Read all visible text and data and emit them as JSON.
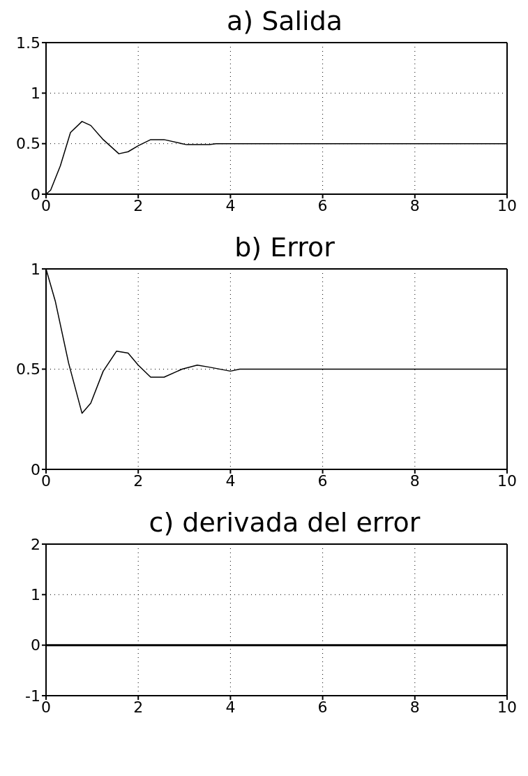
{
  "chart_data": [
    {
      "type": "line",
      "title": "a) Salida",
      "x": [
        0,
        0.1,
        0.31,
        0.53,
        0.78,
        0.97,
        1.24,
        1.58,
        1.78,
        2.0,
        2.27,
        2.56,
        2.95,
        3.05,
        3.54,
        3.69,
        10
      ],
      "values": [
        0,
        0.04,
        0.28,
        0.61,
        0.72,
        0.68,
        0.54,
        0.4,
        0.42,
        0.48,
        0.54,
        0.54,
        0.5,
        0.49,
        0.49,
        0.5,
        0.5
      ],
      "color": "#000000",
      "xlim": [
        0,
        10
      ],
      "xticks": [
        0,
        2,
        4,
        6,
        8,
        10
      ],
      "ylim": [
        0,
        1.5
      ],
      "yticks": [
        0,
        0.5,
        1,
        1.5
      ],
      "grid": true
    },
    {
      "type": "line",
      "title": "b) Error",
      "x": [
        0,
        0.2,
        0.49,
        0.78,
        0.97,
        1.24,
        1.53,
        1.78,
        2.0,
        2.27,
        2.56,
        2.95,
        3.28,
        3.54,
        4.0,
        4.2,
        10
      ],
      "values": [
        1,
        0.84,
        0.53,
        0.28,
        0.33,
        0.49,
        0.59,
        0.58,
        0.52,
        0.46,
        0.46,
        0.5,
        0.52,
        0.51,
        0.49,
        0.5,
        0.5
      ],
      "color": "#000000",
      "xlim": [
        0,
        10
      ],
      "xticks": [
        0,
        2,
        4,
        6,
        8,
        10
      ],
      "ylim": [
        0,
        1
      ],
      "yticks": [
        0,
        0.5,
        1
      ],
      "grid": true
    },
    {
      "type": "line",
      "title": "c) derivada del error",
      "x": [
        0,
        10
      ],
      "values": [
        0,
        0
      ],
      "color": "#000000",
      "xlim": [
        0,
        10
      ],
      "xticks": [
        0,
        2,
        4,
        6,
        8,
        10
      ],
      "ylim": [
        -1,
        2
      ],
      "yticks": [
        -1,
        0,
        1,
        2
      ],
      "grid": true
    }
  ]
}
